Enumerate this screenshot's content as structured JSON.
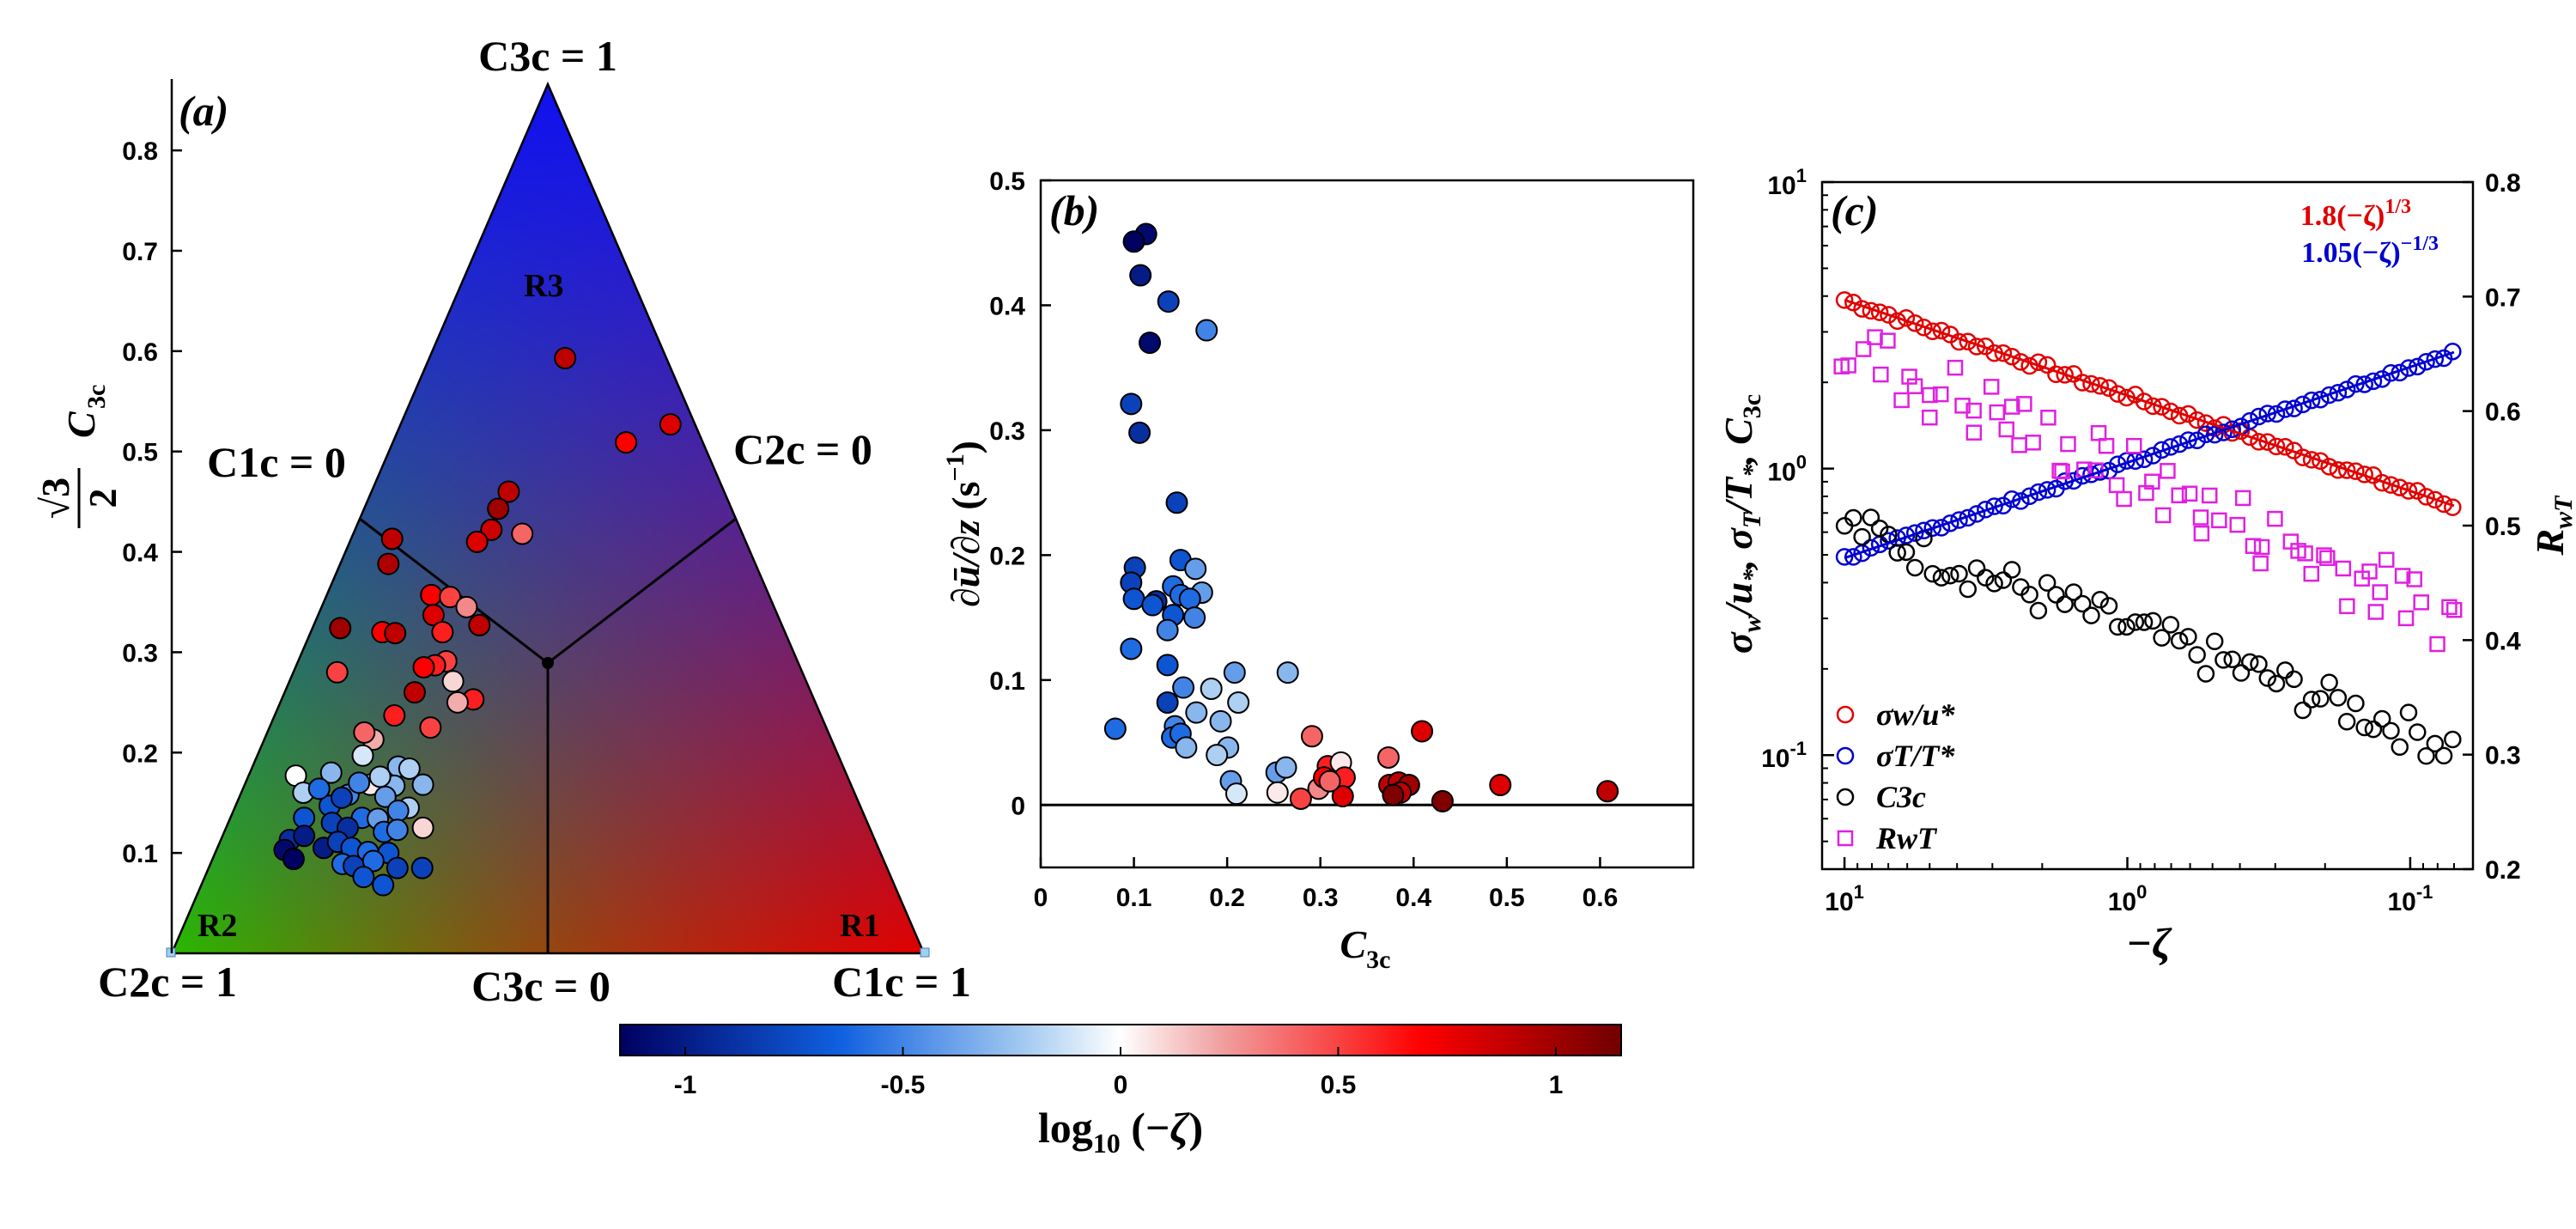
{
  "chart_data": [
    {
      "panel": "a",
      "type": "scatter",
      "panel_label": "(a)",
      "kind": "barycentric anisotropy map",
      "ylabel": "√3/2 C3c",
      "ylim": [
        0,
        0.866
      ],
      "yticks": [
        "0.1",
        "0.2",
        "0.3",
        "0.4",
        "0.5",
        "0.6",
        "0.7",
        "0.8"
      ],
      "corner_labels": {
        "top": "C3c = 1",
        "bottom_left": "C2c = 1",
        "bottom_right": "C1c = 1"
      },
      "edge_labels": {
        "left": "C1c = 0",
        "right": "C2c = 0",
        "bottom": "C3c = 0"
      },
      "regions": [
        "R1",
        "R2",
        "R3"
      ],
      "colors": {
        "top": "#1010f0",
        "left": "#00e000",
        "right": "#e00000"
      },
      "points": [
        {
          "x": 0.523,
          "y": 0.593,
          "c": 0.9
        },
        {
          "x": 0.604,
          "y": 0.509,
          "c": 0.7
        },
        {
          "x": 0.663,
          "y": 0.527,
          "c": 0.8
        },
        {
          "x": 0.448,
          "y": 0.46,
          "c": 0.9
        },
        {
          "x": 0.434,
          "y": 0.443,
          "c": 1.0
        },
        {
          "x": 0.425,
          "y": 0.422,
          "c": 0.85
        },
        {
          "x": 0.406,
          "y": 0.41,
          "c": 0.8
        },
        {
          "x": 0.466,
          "y": 0.418,
          "c": 0.4
        },
        {
          "x": 0.293,
          "y": 0.413,
          "c": 0.9
        },
        {
          "x": 0.288,
          "y": 0.388,
          "c": 0.95
        },
        {
          "x": 0.345,
          "y": 0.357,
          "c": 0.7
        },
        {
          "x": 0.37,
          "y": 0.355,
          "c": 0.5
        },
        {
          "x": 0.348,
          "y": 0.337,
          "c": 0.8
        },
        {
          "x": 0.392,
          "y": 0.345,
          "c": 0.3
        },
        {
          "x": 0.409,
          "y": 0.327,
          "c": 0.9
        },
        {
          "x": 0.36,
          "y": 0.32,
          "c": 0.6
        },
        {
          "x": 0.224,
          "y": 0.324,
          "c": 1.0
        },
        {
          "x": 0.28,
          "y": 0.32,
          "c": 0.7
        },
        {
          "x": 0.297,
          "y": 0.319,
          "c": 0.9
        },
        {
          "x": 0.365,
          "y": 0.291,
          "c": 0.5
        },
        {
          "x": 0.35,
          "y": 0.287,
          "c": 0.6
        },
        {
          "x": 0.335,
          "y": 0.285,
          "c": 0.7
        },
        {
          "x": 0.374,
          "y": 0.271,
          "c": 0.1
        },
        {
          "x": 0.401,
          "y": 0.253,
          "c": 0.6
        },
        {
          "x": 0.38,
          "y": 0.25,
          "c": 0.2
        },
        {
          "x": 0.323,
          "y": 0.26,
          "c": 0.9
        },
        {
          "x": 0.22,
          "y": 0.28,
          "c": 0.5
        },
        {
          "x": 0.296,
          "y": 0.237,
          "c": 0.6
        },
        {
          "x": 0.344,
          "y": 0.225,
          "c": 0.5
        },
        {
          "x": 0.268,
          "y": 0.213,
          "c": 0.2
        },
        {
          "x": 0.256,
          "y": 0.22,
          "c": 0.4
        },
        {
          "x": 0.254,
          "y": 0.197,
          "c": -0.1
        },
        {
          "x": 0.301,
          "y": 0.186,
          "c": -0.3
        },
        {
          "x": 0.316,
          "y": 0.184,
          "c": -0.2
        },
        {
          "x": 0.212,
          "y": 0.18,
          "c": -0.3
        },
        {
          "x": 0.264,
          "y": 0.168,
          "c": 0.05
        },
        {
          "x": 0.235,
          "y": 0.158,
          "c": -0.5
        },
        {
          "x": 0.334,
          "y": 0.168,
          "c": -0.3
        },
        {
          "x": 0.296,
          "y": 0.167,
          "c": -0.3
        },
        {
          "x": 0.284,
          "y": 0.156,
          "c": -0.4
        },
        {
          "x": 0.315,
          "y": 0.145,
          "c": -0.2
        },
        {
          "x": 0.21,
          "y": 0.147,
          "c": -0.7
        },
        {
          "x": 0.253,
          "y": 0.135,
          "c": -0.6
        },
        {
          "x": 0.274,
          "y": 0.134,
          "c": -0.4
        },
        {
          "x": 0.301,
          "y": 0.142,
          "c": -0.5
        },
        {
          "x": 0.165,
          "y": 0.177,
          "c": 0.0
        },
        {
          "x": 0.175,
          "y": 0.16,
          "c": -0.2
        },
        {
          "x": 0.196,
          "y": 0.164,
          "c": -0.6
        },
        {
          "x": 0.226,
          "y": 0.155,
          "c": -0.8
        },
        {
          "x": 0.249,
          "y": 0.17,
          "c": -0.5
        },
        {
          "x": 0.277,
          "y": 0.176,
          "c": -0.2
        },
        {
          "x": 0.176,
          "y": 0.135,
          "c": -0.7
        },
        {
          "x": 0.213,
          "y": 0.13,
          "c": -0.8
        },
        {
          "x": 0.234,
          "y": 0.125,
          "c": -0.9
        },
        {
          "x": 0.282,
          "y": 0.121,
          "c": -0.6
        },
        {
          "x": 0.3,
          "y": 0.123,
          "c": -0.5
        },
        {
          "x": 0.334,
          "y": 0.125,
          "c": 0.1
        },
        {
          "x": 0.157,
          "y": 0.113,
          "c": -0.9
        },
        {
          "x": 0.176,
          "y": 0.117,
          "c": -1.0
        },
        {
          "x": 0.15,
          "y": 0.103,
          "c": -1.1
        },
        {
          "x": 0.162,
          "y": 0.094,
          "c": -1.15
        },
        {
          "x": 0.202,
          "y": 0.105,
          "c": -1.0
        },
        {
          "x": 0.221,
          "y": 0.111,
          "c": -0.8
        },
        {
          "x": 0.239,
          "y": 0.105,
          "c": -0.7
        },
        {
          "x": 0.261,
          "y": 0.101,
          "c": -0.6
        },
        {
          "x": 0.288,
          "y": 0.1,
          "c": -0.7
        },
        {
          "x": 0.227,
          "y": 0.089,
          "c": -0.6
        },
        {
          "x": 0.242,
          "y": 0.087,
          "c": -0.8
        },
        {
          "x": 0.268,
          "y": 0.092,
          "c": -0.6
        },
        {
          "x": 0.3,
          "y": 0.085,
          "c": -0.8
        },
        {
          "x": 0.333,
          "y": 0.085,
          "c": -0.8
        },
        {
          "x": 0.281,
          "y": 0.068,
          "c": -0.7
        },
        {
          "x": 0.255,
          "y": 0.076,
          "c": -0.7
        }
      ]
    },
    {
      "panel": "b",
      "type": "scatter",
      "panel_label": "(b)",
      "xlabel": "C3c",
      "ylabel": "∂ū/∂z (s⁻¹)",
      "xlim": [
        0,
        0.7
      ],
      "ylim": [
        -0.05,
        0.5
      ],
      "xticks": [
        "0",
        "0.1",
        "0.2",
        "0.3",
        "0.4",
        "0.5",
        "0.6"
      ],
      "yticks": [
        "0",
        "0.1",
        "0.2",
        "0.3",
        "0.4",
        "0.5"
      ],
      "reference_line_y": 0,
      "points": [
        {
          "x": 0.113,
          "y": 0.457,
          "c": -1.1
        },
        {
          "x": 0.1,
          "y": 0.451,
          "c": -1.15
        },
        {
          "x": 0.107,
          "y": 0.424,
          "c": -1.0
        },
        {
          "x": 0.137,
          "y": 0.403,
          "c": -0.8
        },
        {
          "x": 0.117,
          "y": 0.37,
          "c": -1.1
        },
        {
          "x": 0.178,
          "y": 0.38,
          "c": -0.5
        },
        {
          "x": 0.097,
          "y": 0.321,
          "c": -0.8
        },
        {
          "x": 0.106,
          "y": 0.298,
          "c": -0.9
        },
        {
          "x": 0.146,
          "y": 0.242,
          "c": -0.8
        },
        {
          "x": 0.15,
          "y": 0.196,
          "c": -0.7
        },
        {
          "x": 0.101,
          "y": 0.19,
          "c": -0.8
        },
        {
          "x": 0.097,
          "y": 0.178,
          "c": -0.8
        },
        {
          "x": 0.166,
          "y": 0.189,
          "c": -0.4
        },
        {
          "x": 0.142,
          "y": 0.175,
          "c": -0.6
        },
        {
          "x": 0.124,
          "y": 0.163,
          "c": -0.9
        },
        {
          "x": 0.1,
          "y": 0.165,
          "c": -0.7
        },
        {
          "x": 0.15,
          "y": 0.168,
          "c": -0.6
        },
        {
          "x": 0.173,
          "y": 0.17,
          "c": -0.4
        },
        {
          "x": 0.16,
          "y": 0.165,
          "c": -0.6
        },
        {
          "x": 0.142,
          "y": 0.152,
          "c": -0.7
        },
        {
          "x": 0.136,
          "y": 0.14,
          "c": -0.5
        },
        {
          "x": 0.12,
          "y": 0.16,
          "c": -0.7
        },
        {
          "x": 0.165,
          "y": 0.15,
          "c": -0.5
        },
        {
          "x": 0.097,
          "y": 0.125,
          "c": -0.6
        },
        {
          "x": 0.136,
          "y": 0.112,
          "c": -0.7
        },
        {
          "x": 0.153,
          "y": 0.094,
          "c": -0.5
        },
        {
          "x": 0.208,
          "y": 0.106,
          "c": -0.4
        },
        {
          "x": 0.265,
          "y": 0.106,
          "c": -0.3
        },
        {
          "x": 0.183,
          "y": 0.093,
          "c": -0.2
        },
        {
          "x": 0.08,
          "y": 0.061,
          "c": -0.6
        },
        {
          "x": 0.136,
          "y": 0.082,
          "c": -0.8
        },
        {
          "x": 0.144,
          "y": 0.063,
          "c": -0.5
        },
        {
          "x": 0.193,
          "y": 0.067,
          "c": -0.3
        },
        {
          "x": 0.167,
          "y": 0.074,
          "c": -0.3
        },
        {
          "x": 0.212,
          "y": 0.082,
          "c": -0.2
        },
        {
          "x": 0.141,
          "y": 0.054,
          "c": -0.6
        },
        {
          "x": 0.15,
          "y": 0.057,
          "c": -0.6
        },
        {
          "x": 0.156,
          "y": 0.046,
          "c": -0.3
        },
        {
          "x": 0.201,
          "y": 0.046,
          "c": -0.3
        },
        {
          "x": 0.189,
          "y": 0.04,
          "c": -0.2
        },
        {
          "x": 0.204,
          "y": 0.019,
          "c": -0.4
        },
        {
          "x": 0.21,
          "y": 0.009,
          "c": -0.1
        },
        {
          "x": 0.253,
          "y": 0.026,
          "c": -0.4
        },
        {
          "x": 0.263,
          "y": 0.03,
          "c": -0.3
        },
        {
          "x": 0.254,
          "y": 0.01,
          "c": 0.05
        },
        {
          "x": 0.291,
          "y": 0.055,
          "c": 0.4
        },
        {
          "x": 0.308,
          "y": 0.031,
          "c": 0.6
        },
        {
          "x": 0.322,
          "y": 0.034,
          "c": 0.05
        },
        {
          "x": 0.298,
          "y": 0.013,
          "c": 0.3
        },
        {
          "x": 0.279,
          "y": 0.005,
          "c": 0.5
        },
        {
          "x": 0.304,
          "y": 0.022,
          "c": 0.7
        },
        {
          "x": 0.326,
          "y": 0.022,
          "c": 0.6
        },
        {
          "x": 0.324,
          "y": 0.007,
          "c": 0.8
        },
        {
          "x": 0.31,
          "y": 0.019,
          "c": 0.4
        },
        {
          "x": 0.373,
          "y": 0.038,
          "c": 0.4
        },
        {
          "x": 0.409,
          "y": 0.059,
          "c": 0.8
        },
        {
          "x": 0.374,
          "y": 0.016,
          "c": 0.9
        },
        {
          "x": 0.384,
          "y": 0.018,
          "c": 0.9
        },
        {
          "x": 0.395,
          "y": 0.016,
          "c": 1.0
        },
        {
          "x": 0.386,
          "y": 0.01,
          "c": 0.9
        },
        {
          "x": 0.378,
          "y": 0.008,
          "c": 1.1
        },
        {
          "x": 0.431,
          "y": 0.003,
          "c": 1.1
        },
        {
          "x": 0.493,
          "y": 0.016,
          "c": 0.8
        },
        {
          "x": 0.608,
          "y": 0.011,
          "c": 0.9
        }
      ]
    },
    {
      "panel": "c",
      "type": "scatter",
      "panel_label": "(c)",
      "xlabel": "−ζ",
      "ylabel_left": "σw/u*, σT/T*, C3c",
      "ylabel_right": "RwT",
      "xscale": "log",
      "x_direction": "reversed",
      "xlim": [
        0.06,
        12
      ],
      "ylim_left": [
        0.04,
        10
      ],
      "ylim_right": [
        0.2,
        0.8
      ],
      "xticks": [
        {
          "value": 10,
          "label": "10",
          "exp": "1"
        },
        {
          "value": 1,
          "label": "10",
          "exp": "0"
        },
        {
          "value": 0.1,
          "label": "10",
          "exp": "-1"
        }
      ],
      "yticks_left": [
        {
          "value": 0.1,
          "label": "10",
          "exp": "-1"
        },
        {
          "value": 1,
          "label": "10",
          "exp": "0"
        },
        {
          "value": 10,
          "label": "10",
          "exp": "1"
        }
      ],
      "yticks_right": [
        "0.2",
        "0.3",
        "0.4",
        "0.5",
        "0.6",
        "0.7",
        "0.8"
      ],
      "fits": [
        {
          "label": "1.8(−ζ)",
          "exp": "1/3",
          "color": "#e00000",
          "a": 1.8,
          "p": 0.3333
        },
        {
          "label": "1.05(−ζ)",
          "exp": "−1/3",
          "color": "#0000d0",
          "a": 1.05,
          "p": -0.3333
        }
      ],
      "legend": [
        {
          "label": "σw/u*",
          "marker": "circle",
          "color": "#e00000"
        },
        {
          "label": "σT/T*",
          "marker": "circle",
          "color": "#0000d0"
        },
        {
          "label": "C3c",
          "marker": "circle",
          "color": "#000000"
        },
        {
          "label": "RwT",
          "marker": "square",
          "color": "#e020e0"
        }
      ],
      "series": [
        {
          "name": "σw/u*",
          "ampl": 1.8,
          "p": 0.3333,
          "noise": 0.03
        },
        {
          "name": "σT/T*",
          "ampl": 1.05,
          "p": -0.3333,
          "noise": 0.02
        },
        {
          "name": "C3c",
          "ampl": 0.28,
          "p": 0.36,
          "noise": 0.16
        },
        {
          "name": "RwT",
          "right_axis": true,
          "start": 0.655,
          "slope": 0.11,
          "noise": 0.03
        }
      ],
      "npoints": 70
    }
  ],
  "colorbar": {
    "label": "log10 (−ζ)",
    "range": [
      -1.15,
      1.15
    ],
    "ticks": [
      "-1",
      "-0.5",
      "0",
      "0.5",
      "1"
    ],
    "stops": [
      "#000060",
      "#1060e0",
      "#a0c8f0",
      "#ffffff",
      "#f0a0a0",
      "#ff0000",
      "#700000"
    ]
  }
}
